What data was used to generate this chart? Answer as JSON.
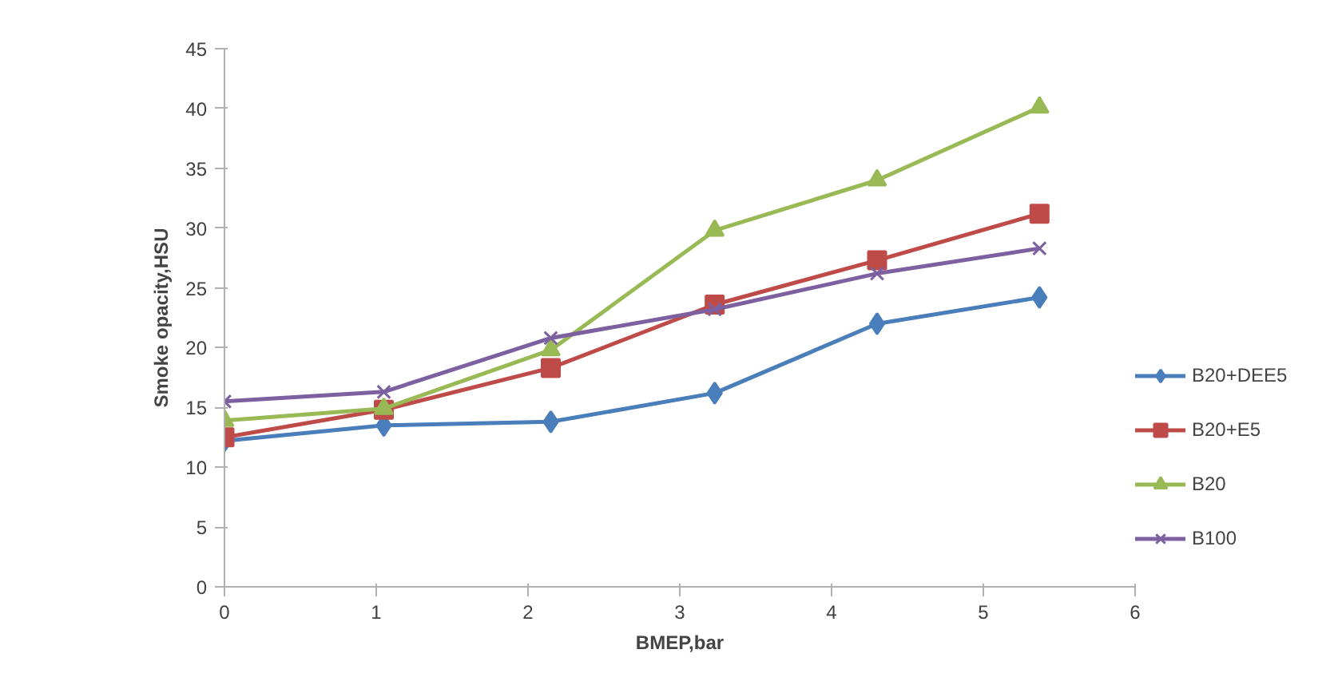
{
  "chart_data": {
    "type": "line",
    "xlabel": "BMEP,bar",
    "ylabel": "Smoke opacity,HSU",
    "x": [
      0,
      1.05,
      2.15,
      3.23,
      4.3,
      5.37
    ],
    "xlim": [
      0,
      6
    ],
    "xticks": [
      0,
      1,
      2,
      3,
      4,
      5,
      6
    ],
    "ylim": [
      0,
      45
    ],
    "yticks": [
      0,
      5,
      10,
      15,
      20,
      25,
      30,
      35,
      40,
      45
    ],
    "grid": false,
    "legend": "right",
    "line_style": "solid",
    "series": [
      {
        "name": "B20+DEE5",
        "color": "#4a7ebb",
        "marker": "diamond",
        "values": [
          12.2,
          13.5,
          13.8,
          16.2,
          22,
          24.2
        ]
      },
      {
        "name": "B20+E5",
        "color": "#be4b48",
        "marker": "square",
        "values": [
          12.5,
          14.8,
          18.3,
          23.6,
          27.3,
          31.2
        ]
      },
      {
        "name": "B20",
        "color": "#98b954",
        "marker": "triangle",
        "values": [
          13.9,
          14.9,
          19.8,
          29.8,
          34,
          40.1
        ]
      },
      {
        "name": "B100",
        "color": "#7d60a0",
        "marker": "cross",
        "values": [
          15.5,
          16.3,
          20.8,
          23.2,
          26.2,
          28.3
        ]
      }
    ]
  }
}
